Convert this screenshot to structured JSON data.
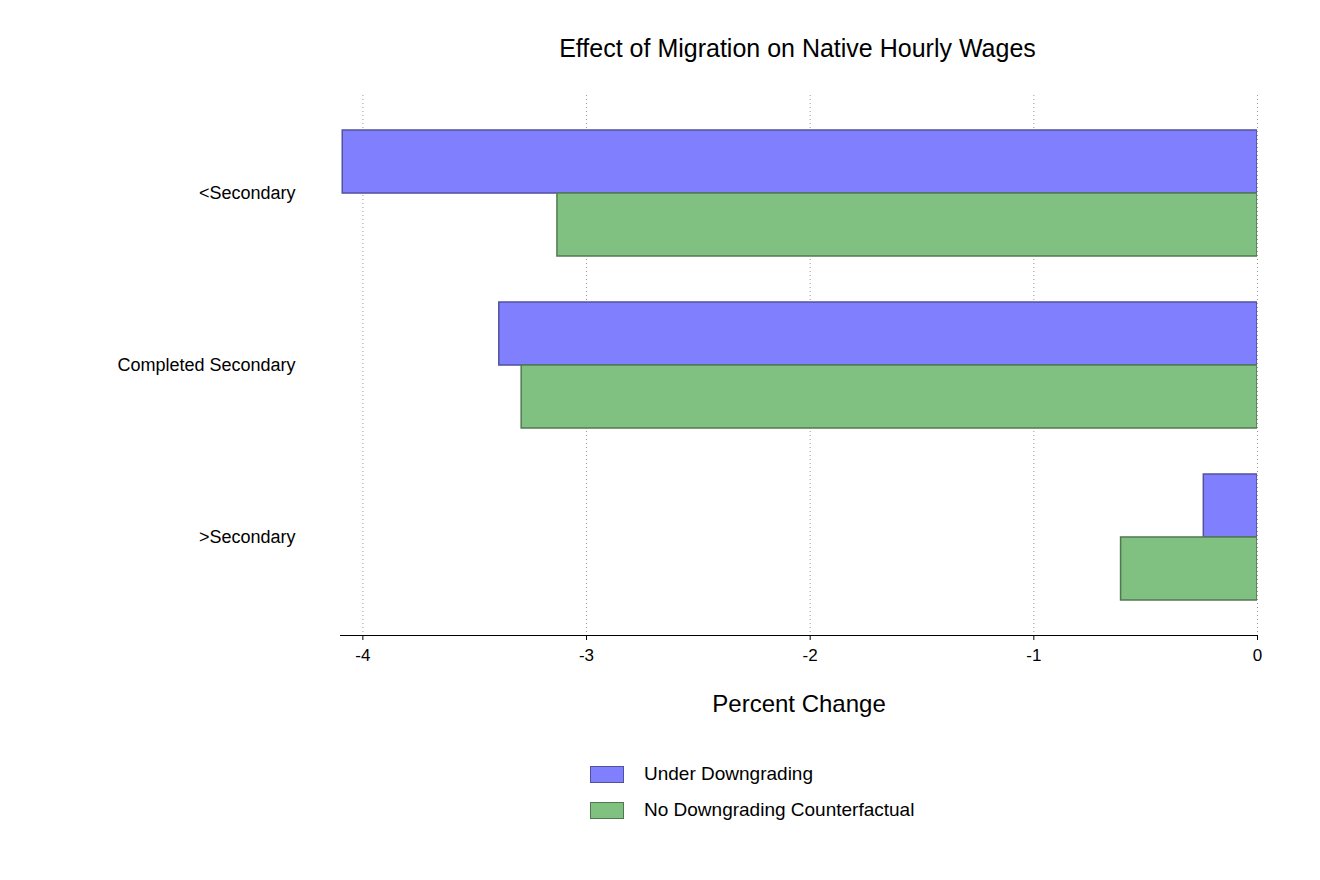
{
  "chart_data": {
    "type": "bar",
    "orientation": "horizontal",
    "title": "Effect of Migration on Native Hourly Wages",
    "x_label": "Percent Change",
    "categories": [
      "<Secondary",
      "Completed Secondary",
      ">Secondary"
    ],
    "series": [
      {
        "name": "Under Downgrading",
        "color": "#8080ff",
        "values": [
          -4.09,
          -3.39,
          -0.24
        ]
      },
      {
        "name": "No Downgrading Counterfactual",
        "color": "#80c080",
        "values": [
          -3.13,
          -3.29,
          -0.61
        ]
      }
    ],
    "xlim": [
      -4.1,
      0
    ],
    "xticks": [
      -4,
      -3,
      -2,
      -1,
      0
    ],
    "grid": true,
    "legend": "bottom"
  }
}
